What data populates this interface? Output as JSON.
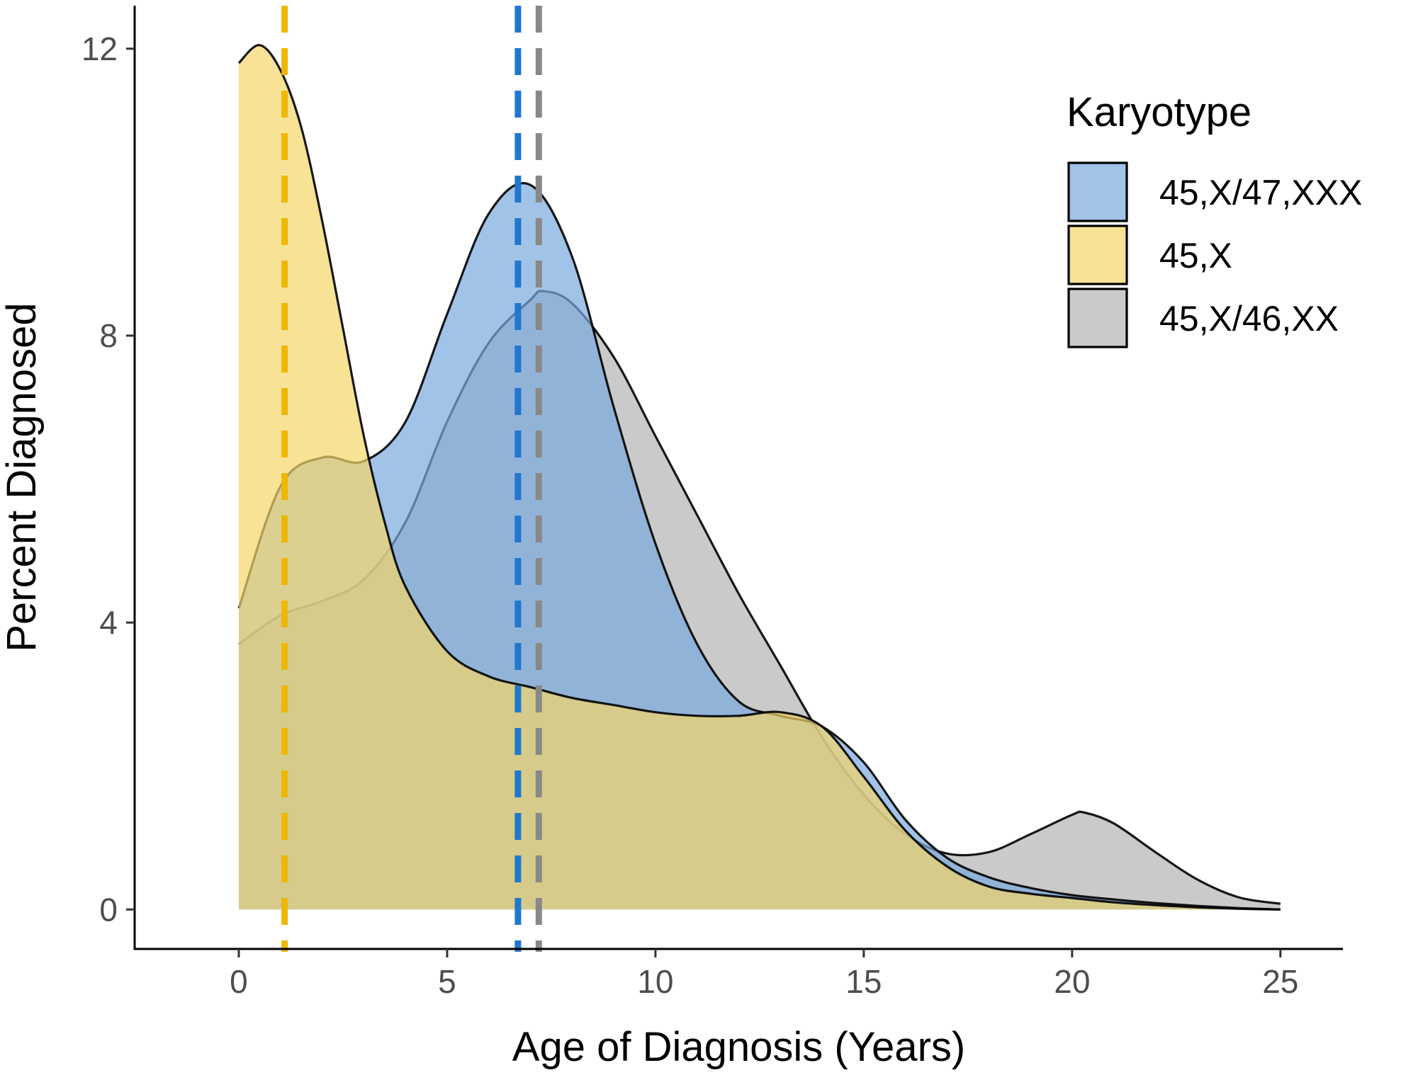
{
  "chart_data": {
    "type": "area",
    "subtype": "density",
    "title": "",
    "xlabel": "Age of Diagnosis (Years)",
    "ylabel": "Percent Diagnosed",
    "xlim": [
      -2.5,
      26.5
    ],
    "ylim": [
      -0.55,
      12.6
    ],
    "xticks": [
      0,
      5,
      10,
      15,
      20,
      25
    ],
    "yticks": [
      0,
      4,
      8,
      12
    ],
    "grid": false,
    "legend": {
      "title": "Karyotype",
      "position": "right-top",
      "entries": [
        "45,X/47,XXX",
        "45,X",
        "45,X/46,XX"
      ]
    },
    "series": [
      {
        "name": "45,X/46,XX",
        "color": "#b3b3b3",
        "fill_opacity": 0.7,
        "median": 7.2,
        "median_color": "#888888",
        "x": [
          0,
          1,
          2,
          3,
          4,
          5,
          6,
          7,
          7.3,
          8,
          9,
          10,
          11,
          12,
          13,
          14,
          15,
          16,
          17,
          18,
          19,
          20,
          20.3,
          21,
          22,
          23,
          24,
          25
        ],
        "y": [
          3.7,
          4.1,
          4.3,
          4.6,
          5.4,
          6.8,
          7.9,
          8.5,
          8.62,
          8.45,
          7.7,
          6.6,
          5.5,
          4.4,
          3.4,
          2.4,
          1.6,
          1.05,
          0.78,
          0.8,
          1.05,
          1.32,
          1.35,
          1.2,
          0.8,
          0.42,
          0.17,
          0.08
        ]
      },
      {
        "name": "45,X/47,XXX",
        "color": "#7aa9de",
        "fill_opacity": 0.7,
        "median": 6.7,
        "median_color": "#1f77d0",
        "x": [
          0,
          1,
          2,
          3,
          4,
          5,
          6,
          7,
          8,
          9,
          10,
          11,
          12,
          13,
          14,
          15,
          16,
          17,
          18,
          19,
          20,
          21,
          22,
          23,
          24,
          25
        ],
        "y": [
          4.2,
          5.9,
          6.3,
          6.25,
          6.8,
          8.3,
          9.7,
          10.1,
          9.1,
          7.0,
          5.1,
          3.7,
          2.9,
          2.7,
          2.55,
          2.05,
          1.25,
          0.72,
          0.45,
          0.3,
          0.2,
          0.14,
          0.09,
          0.05,
          0.02,
          0.0
        ]
      },
      {
        "name": "45,X",
        "color": "#f4d56a",
        "fill_opacity": 0.7,
        "median": 1.1,
        "median_color": "#eeb700",
        "x": [
          0,
          0.5,
          1,
          1.5,
          2,
          2.5,
          3,
          3.5,
          4,
          5,
          6,
          7,
          8,
          9,
          10,
          11,
          12,
          13,
          14,
          15,
          16,
          17,
          18,
          19,
          20,
          21,
          22,
          23,
          24,
          25
        ],
        "y": [
          11.8,
          12.05,
          11.7,
          10.9,
          9.6,
          8.1,
          6.6,
          5.4,
          4.5,
          3.6,
          3.25,
          3.1,
          2.95,
          2.85,
          2.75,
          2.7,
          2.7,
          2.75,
          2.55,
          1.85,
          1.1,
          0.6,
          0.32,
          0.22,
          0.16,
          0.1,
          0.06,
          0.03,
          0.01,
          0.0
        ]
      }
    ],
    "legend_order": [
      "45,X/47,XXX",
      "45,X",
      "45,X/46,XX"
    ]
  }
}
